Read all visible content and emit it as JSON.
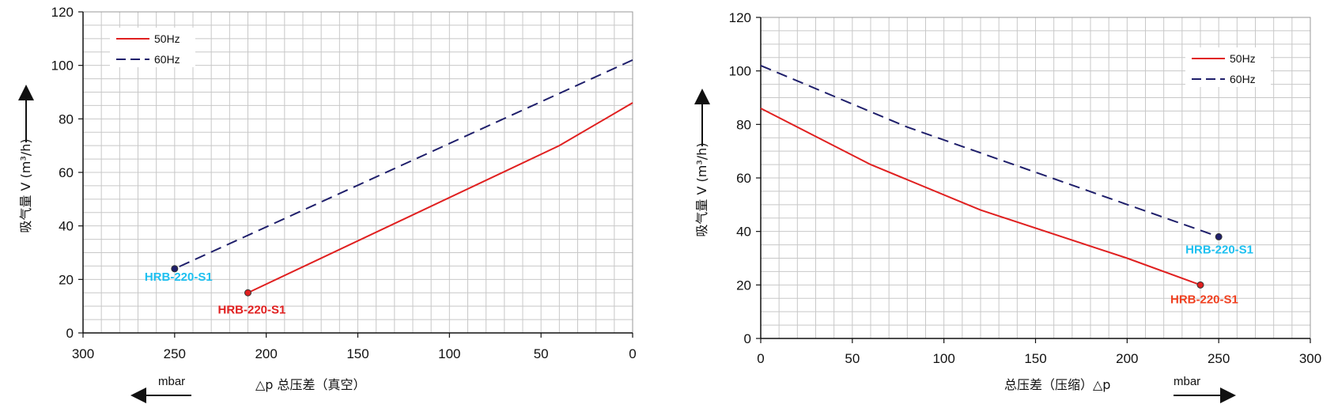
{
  "chart_data": [
    {
      "type": "line",
      "xlabel": "△p 总压差（真空）",
      "x_unit": "mbar",
      "ylabel": "吸气量 V (m³/h)",
      "xlim": [
        300,
        0
      ],
      "ylim": [
        0,
        120
      ],
      "x_ticks": [
        "300",
        "250",
        "200",
        "150",
        "100",
        "50",
        "0"
      ],
      "y_ticks": [
        "0",
        "20",
        "40",
        "60",
        "80",
        "100",
        "120"
      ],
      "grid": true,
      "legend_position": "top-left",
      "series": [
        {
          "name": "50Hz",
          "color": "#e02020",
          "style": "solid",
          "points": [
            [
              0,
              86
            ],
            [
              40,
              70
            ],
            [
              210,
              15
            ]
          ],
          "end_label": "HRB-220-S1",
          "end_label_color": "#e02020"
        },
        {
          "name": "60Hz",
          "color": "#1f1f6b",
          "style": "dashed",
          "points": [
            [
              0,
              102
            ],
            [
              250,
              24
            ]
          ],
          "end_label": "HRB-220-S1",
          "end_label_color": "#1ec0f0"
        }
      ]
    },
    {
      "type": "line",
      "xlabel": "总压差（压缩）△p",
      "x_unit": "mbar",
      "ylabel": "吸气量 V (m³/h)",
      "xlim": [
        0,
        300
      ],
      "ylim": [
        0,
        120
      ],
      "x_ticks": [
        "0",
        "50",
        "100",
        "150",
        "200",
        "250",
        "300"
      ],
      "y_ticks": [
        "0",
        "20",
        "40",
        "60",
        "80",
        "100",
        "120"
      ],
      "grid": true,
      "legend_position": "top-right",
      "series": [
        {
          "name": "50Hz",
          "color": "#e02020",
          "style": "solid",
          "points": [
            [
              0,
              86
            ],
            [
              60,
              65
            ],
            [
              120,
              48
            ],
            [
              200,
              30
            ],
            [
              240,
              20
            ]
          ],
          "end_label": "HRB-220-S1",
          "end_label_color": "#f04020"
        },
        {
          "name": "60Hz",
          "color": "#1f1f6b",
          "style": "dashed",
          "points": [
            [
              0,
              102
            ],
            [
              80,
              79
            ],
            [
              250,
              38
            ]
          ],
          "end_label": "HRB-220-S1",
          "end_label_color": "#1ec0f0"
        }
      ]
    }
  ]
}
